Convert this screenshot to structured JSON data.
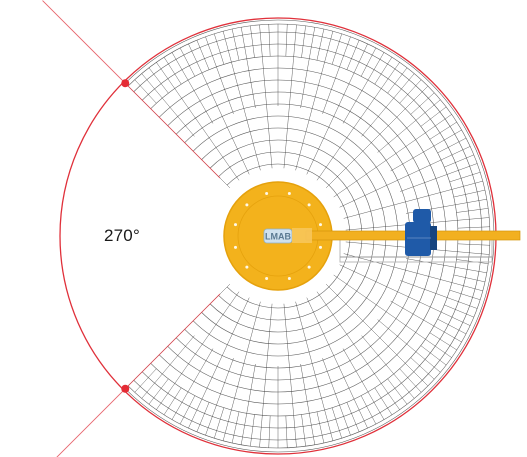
{
  "diagram": {
    "angle_label": "270°",
    "hub_logo": "LMAB",
    "colors": {
      "boundary": "#e0303a",
      "boundary_dot": "#e42b35",
      "grid": "#3a3a3a",
      "hub_fill": "#f3b21c",
      "hub_edge": "#e5a10c",
      "arm_fill": "#f2b020",
      "motor": "#1f5aa8",
      "logo_fill": "#cfe1ee"
    }
  }
}
